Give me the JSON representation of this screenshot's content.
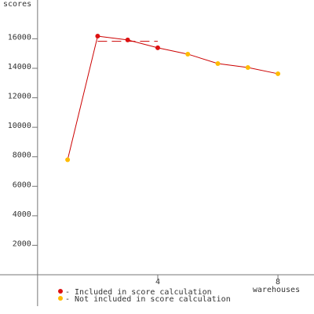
{
  "chart_data": {
    "type": "line",
    "y_label": "scores",
    "x_label": "warehouses",
    "x": [
      1,
      2,
      3,
      4,
      5,
      6,
      7,
      8
    ],
    "series": [
      {
        "color": "#cc0000",
        "values": [
          7800,
          16180,
          15920,
          15390,
          14960,
          14320,
          14050,
          13630
        ]
      }
    ],
    "point_groups": [
      1,
      0,
      0,
      0,
      1,
      1,
      1,
      1
    ],
    "legend": [
      {
        "label": "- Included in score calculation",
        "color": "#dd1111"
      },
      {
        "label": "- Not included in score calculation",
        "color": "#ffbb00"
      }
    ],
    "reference_line": {
      "value": 15830,
      "x": [
        2,
        4
      ],
      "color": "#cc0000"
    },
    "xlim": [
      -1.25,
      9.2
    ],
    "ylim": [
      -2660,
      18630
    ],
    "xticks": [
      4,
      8
    ],
    "yticks": [
      2000,
      4000,
      6000,
      8000,
      10000,
      12000,
      14000,
      16000
    ]
  }
}
